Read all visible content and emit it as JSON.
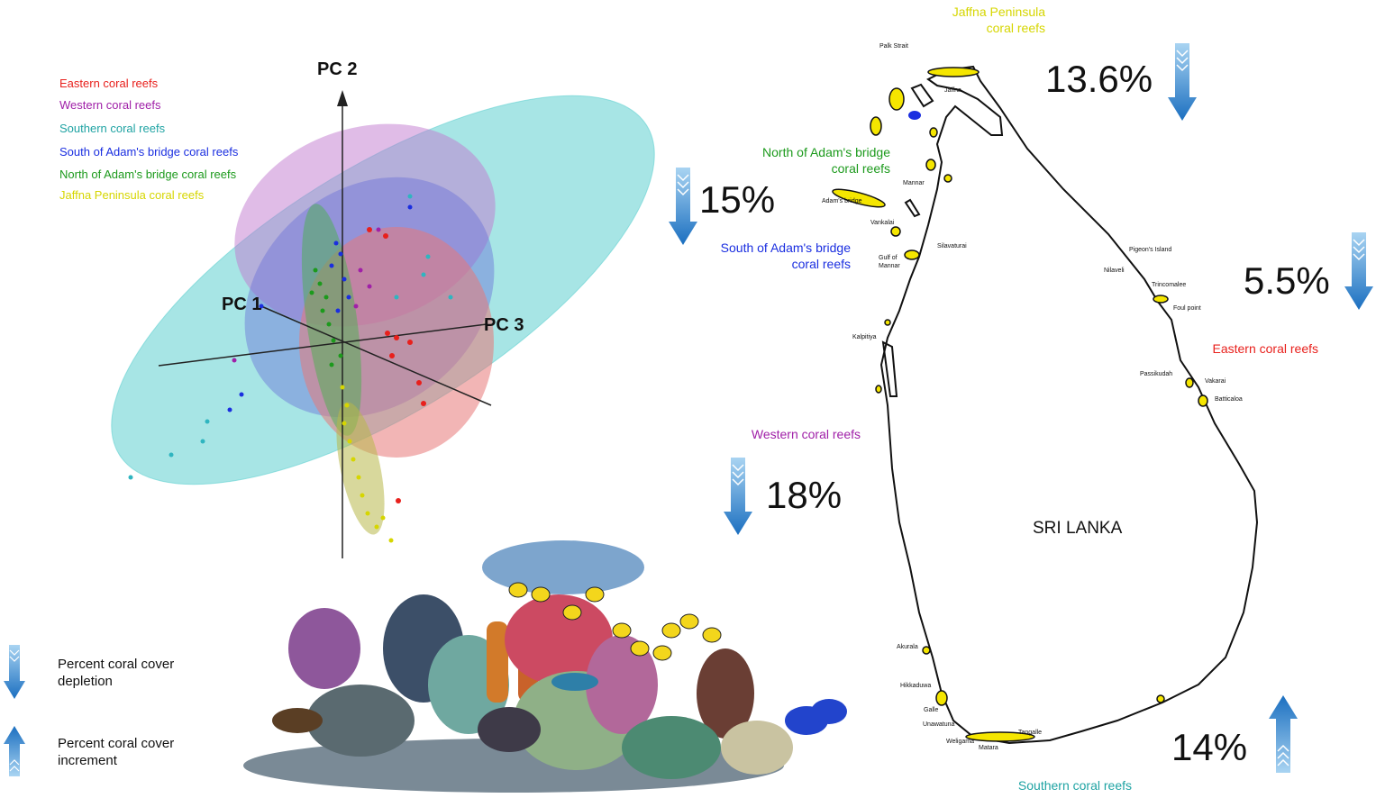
{
  "pca": {
    "legend": [
      {
        "label": "Eastern coral reefs",
        "color": "#e8201c"
      },
      {
        "label": "Western coral reefs",
        "color": "#a020a8"
      },
      {
        "label": "Southern coral reefs",
        "color": "#1fa3a3"
      },
      {
        "label": "South of Adam's bridge coral reefs",
        "color": "#1a2ee0"
      },
      {
        "label": "North of Adam's bridge coral reefs",
        "color": "#1c9a1c"
      },
      {
        "label": "Jaffna Peninsula coral reefs",
        "color": "#d6d600"
      }
    ],
    "axes": {
      "pc1": "PC 1",
      "pc2": "PC 2",
      "pc3": "PC 3"
    }
  },
  "key": {
    "depletion": "Percent coral cover depletion",
    "increment": "Percent coral cover increment"
  },
  "map": {
    "country": "SRI LANKA",
    "regions": {
      "jaffna": {
        "line1": "Jaffna Peninsula",
        "line2": "coral reefs",
        "color": "#d6d600"
      },
      "north_adam": {
        "line1": "North of Adam's bridge",
        "line2": "coral reefs",
        "color": "#1c9a1c"
      },
      "south_adam": {
        "line1": "South of Adam's bridge",
        "line2": "coral reefs",
        "color": "#1a2ee0"
      },
      "western": {
        "line1": "Western coral reefs",
        "color": "#a020a8"
      },
      "eastern": {
        "line1": "Eastern coral reefs",
        "color": "#e8201c"
      },
      "southern": {
        "line1": "Southern coral reefs",
        "color": "#1fa3a3"
      }
    },
    "percentages": {
      "jaffna": "13.6%",
      "north_adam": "15%",
      "eastern": "5.5%",
      "western": "18%",
      "southern": "14%"
    },
    "places": [
      "Palk Strait",
      "Jaffna",
      "Mannar",
      "Adam's bridge",
      "Vankalai",
      "Silavaturai",
      "Gulf of Mannar",
      "Kalpitiya",
      "Pigeon's Island",
      "Nilaveli",
      "Trincomalee",
      "Foul point",
      "Passikudah",
      "Vakarai",
      "Batticaloa",
      "Akurala",
      "Hikkaduwa",
      "Galle",
      "Unawatuna",
      "Weligama",
      "Matara",
      "Tangalle"
    ]
  }
}
